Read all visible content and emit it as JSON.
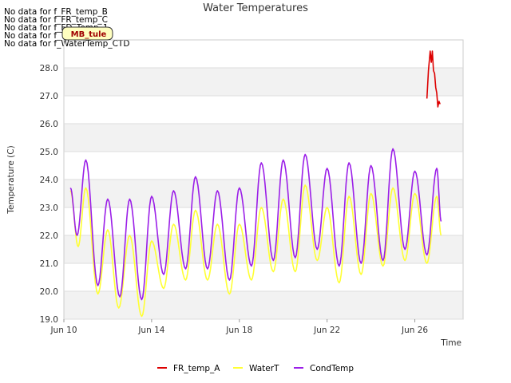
{
  "no_data_messages": [
    "No data for f_FR_temp_B",
    "No data for f_FR_temp_C",
    "No data for f_FD_Temp_1",
    "No data for f_Temp_Ave",
    "No data for f_WaterTemp_CTD"
  ],
  "badge": {
    "label": "MB_tule"
  },
  "chart_data": {
    "type": "line",
    "title": "Water Temperatures",
    "xlabel": "Time",
    "ylabel": "Temperature (C)",
    "xlim": [
      "Jun 10",
      "Jun 28.2"
    ],
    "ylim": [
      19.0,
      29.0
    ],
    "x_ticks": [
      "Jun 10",
      "Jun 14",
      "Jun 18",
      "Jun 22",
      "Jun 26"
    ],
    "y_ticks": [
      "19.0",
      "20.0",
      "21.0",
      "22.0",
      "23.0",
      "24.0",
      "25.0",
      "26.0",
      "27.0",
      "28.0"
    ],
    "grid": true,
    "legend_position": "bottom",
    "series": [
      {
        "name": "FR_temp_A",
        "color": "#dd0000",
        "x": [
          "Jun 26.55",
          "Jun 26.62",
          "Jun 26.7",
          "Jun 26.75",
          "Jun 26.8",
          "Jun 26.85",
          "Jun 26.9",
          "Jun 26.95",
          "Jun 27.0",
          "Jun 27.05",
          "Jun 27.1",
          "Jun 27.15"
        ],
        "y": [
          26.9,
          27.9,
          28.6,
          28.2,
          28.6,
          27.9,
          27.8,
          27.3,
          27.1,
          26.6,
          26.8,
          26.7
        ]
      },
      {
        "name": "WaterT",
        "color": "#ffff33",
        "x": [
          "Jun 10.3",
          "Jun 10.65",
          "Jun 11.0",
          "Jun 11.55",
          "Jun 12.0",
          "Jun 12.5",
          "Jun 13.0",
          "Jun 13.55",
          "Jun 14.0",
          "Jun 14.55",
          "Jun 15.0",
          "Jun 15.55",
          "Jun 16.0",
          "Jun 16.55",
          "Jun 17.0",
          "Jun 17.55",
          "Jun 18.0",
          "Jun 18.55",
          "Jun 19.0",
          "Jun 19.55",
          "Jun 20.0",
          "Jun 20.55",
          "Jun 21.0",
          "Jun 21.55",
          "Jun 22.0",
          "Jun 22.55",
          "Jun 23.0",
          "Jun 23.55",
          "Jun 24.0",
          "Jun 24.55",
          "Jun 25.0",
          "Jun 25.55",
          "Jun 26.0",
          "Jun 26.55",
          "Jun 27.0",
          "Jun 27.2"
        ],
        "y": [
          23.6,
          21.6,
          23.7,
          19.9,
          22.2,
          19.4,
          22.0,
          19.1,
          21.8,
          20.1,
          22.4,
          20.4,
          22.9,
          20.4,
          22.4,
          19.9,
          22.4,
          20.4,
          23.0,
          20.7,
          23.3,
          20.7,
          23.8,
          21.1,
          23.0,
          20.3,
          23.4,
          20.6,
          23.5,
          20.9,
          23.7,
          21.1,
          23.5,
          21.0,
          23.4,
          22.0
        ]
      },
      {
        "name": "CondTemp",
        "color": "#9b1fe8",
        "x": [
          "Jun 10.3",
          "Jun 10.6",
          "Jun 11.0",
          "Jun 11.55",
          "Jun 12.0",
          "Jun 12.55",
          "Jun 13.0",
          "Jun 13.55",
          "Jun 14.0",
          "Jun 14.55",
          "Jun 15.0",
          "Jun 15.55",
          "Jun 16.0",
          "Jun 16.55",
          "Jun 17.0",
          "Jun 17.55",
          "Jun 18.0",
          "Jun 18.55",
          "Jun 19.0",
          "Jun 19.55",
          "Jun 20.0",
          "Jun 20.55",
          "Jun 21.0",
          "Jun 21.55",
          "Jun 22.0",
          "Jun 22.55",
          "Jun 23.0",
          "Jun 23.55",
          "Jun 24.0",
          "Jun 24.55",
          "Jun 25.0",
          "Jun 25.55",
          "Jun 26.0",
          "Jun 26.55",
          "Jun 27.0",
          "Jun 27.2"
        ],
        "y": [
          23.7,
          22.0,
          24.7,
          20.2,
          23.3,
          19.8,
          23.3,
          19.7,
          23.4,
          20.6,
          23.6,
          20.8,
          24.1,
          20.8,
          23.6,
          20.4,
          23.7,
          20.9,
          24.6,
          21.1,
          24.7,
          21.2,
          24.9,
          21.5,
          24.4,
          20.9,
          24.6,
          21.0,
          24.5,
          21.1,
          25.1,
          21.5,
          24.3,
          21.3,
          24.4,
          22.5
        ]
      }
    ]
  }
}
